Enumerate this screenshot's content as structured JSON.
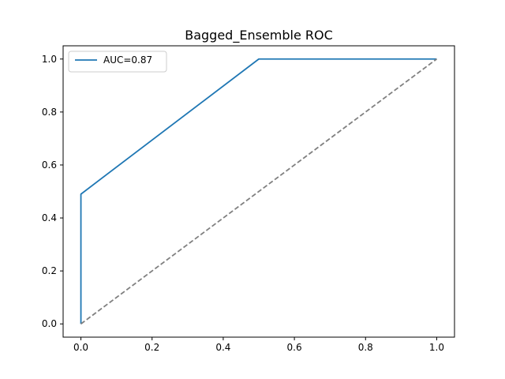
{
  "chart_data": {
    "type": "line",
    "title": "Bagged_Ensemble ROC",
    "xlabel": "",
    "ylabel": "",
    "xlim": [
      -0.05,
      1.05
    ],
    "ylim": [
      -0.05,
      1.05
    ],
    "x_ticks": [
      0.0,
      0.2,
      0.4,
      0.6,
      0.8,
      1.0
    ],
    "x_tick_labels": [
      "0.0",
      "0.2",
      "0.4",
      "0.6",
      "0.8",
      "1.0"
    ],
    "y_ticks": [
      0.0,
      0.2,
      0.4,
      0.6,
      0.8,
      1.0
    ],
    "y_tick_labels": [
      "0.0",
      "0.2",
      "0.4",
      "0.6",
      "0.8",
      "1.0"
    ],
    "grid": false,
    "legend_position": "upper-left",
    "series": [
      {
        "name": "AUC=0.87",
        "color": "#1f77b4",
        "style": "solid",
        "x": [
          0.0,
          0.0,
          0.5,
          1.0
        ],
        "y": [
          0.0,
          0.49,
          1.0,
          1.0
        ]
      },
      {
        "color": "#808080",
        "style": "dashed",
        "x": [
          0.0,
          1.0
        ],
        "y": [
          0.0,
          1.0
        ]
      }
    ]
  }
}
